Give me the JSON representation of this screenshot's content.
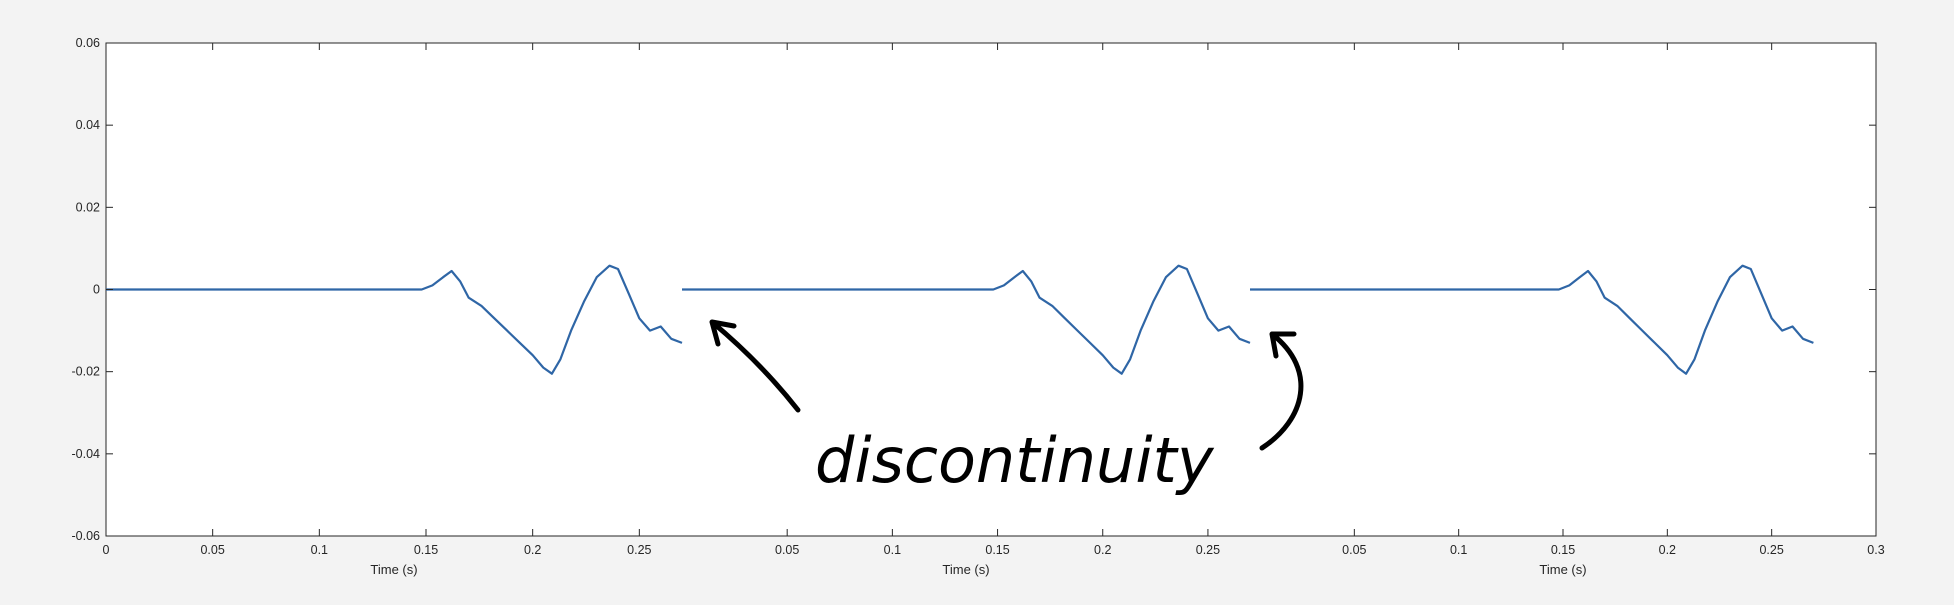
{
  "colors": {
    "background": "#f3f3f3",
    "plot_bg": "#ffffff",
    "axis": "#262626",
    "line": "#2f66a6",
    "annotation": "#000000"
  },
  "chart_data": {
    "type": "line",
    "title": "",
    "grid": false,
    "legend": "none",
    "panels": [
      {
        "name": "panel-1",
        "xlabel": "Time (s)",
        "xlim": [
          0,
          0.27
        ],
        "xticks": [
          "0",
          "0.05",
          "0.1",
          "0.15",
          "0.2",
          "0.25"
        ],
        "ylim": [
          -0.06,
          0.06
        ],
        "yticks": [
          "0.06",
          "0.04",
          "0.02",
          "0",
          "-0.02",
          "-0.04",
          "-0.06"
        ]
      },
      {
        "name": "panel-2",
        "xlabel": "Time (s)",
        "xlim": [
          0,
          0.27
        ],
        "xticks": [
          "0.05",
          "0.1",
          "0.15",
          "0.2",
          "0.25"
        ]
      },
      {
        "name": "panel-3",
        "xlabel": "Time (s)",
        "xlim": [
          0,
          0.3
        ],
        "xticks": [
          "0.05",
          "0.1",
          "0.15",
          "0.2",
          "0.25",
          "0.3"
        ]
      }
    ],
    "waveform": {
      "x": [
        0,
        0.148,
        0.153,
        0.158,
        0.162,
        0.166,
        0.17,
        0.176,
        0.182,
        0.188,
        0.194,
        0.2,
        0.205,
        0.209,
        0.213,
        0.218,
        0.224,
        0.23,
        0.236,
        0.24,
        0.245,
        0.25,
        0.255,
        0.26,
        0.265,
        0.27
      ],
      "y": [
        0,
        0,
        0.001,
        0.003,
        0.0045,
        0.002,
        -0.002,
        -0.004,
        -0.007,
        -0.01,
        -0.013,
        -0.016,
        -0.019,
        -0.0205,
        -0.017,
        -0.01,
        -0.003,
        0.003,
        0.0058,
        0.005,
        -0.001,
        -0.007,
        -0.01,
        -0.009,
        -0.012,
        -0.013
      ]
    },
    "annotations": [
      "discontinuity"
    ]
  }
}
